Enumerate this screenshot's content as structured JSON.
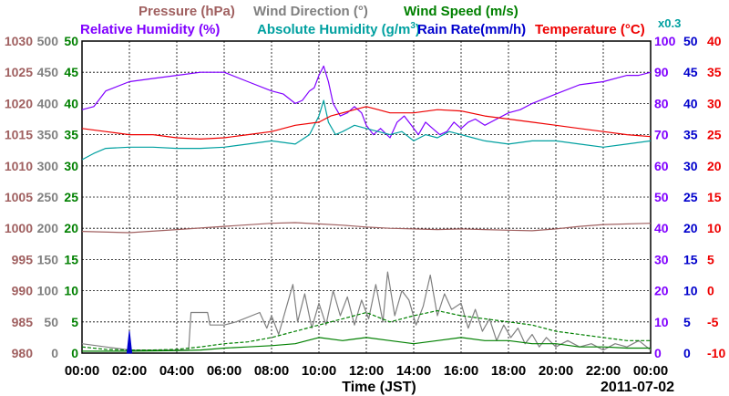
{
  "chart_data": {
    "type": "line",
    "legend_row1": [
      {
        "label": "Pressure (hPa)",
        "color": "#a06060"
      },
      {
        "label": "Wind Direction (°)",
        "color": "#808080"
      },
      {
        "label": "Wind Speed (m/s)",
        "color": "#008000"
      }
    ],
    "legend_row2": [
      {
        "label": "Relative Humidity (%)",
        "color": "#8000ff"
      },
      {
        "label": "Absolute Humidity (g/m",
        "sup": "3",
        "close": ")",
        "color": "#00a0a0"
      },
      {
        "label": "Rain Rate(mm/h)",
        "color": "#0000cc"
      },
      {
        "label": "Temperature (°C)",
        "color": "#ee0000"
      }
    ],
    "rain_scale_note": "x0.3",
    "xlabel": "Time (JST)",
    "date_label": "2011-07-02",
    "x_ticks": [
      "00:00",
      "02:00",
      "04:00",
      "06:00",
      "08:00",
      "10:00",
      "12:00",
      "14:00",
      "16:00",
      "18:00",
      "20:00",
      "22:00",
      "00:00"
    ],
    "axes": {
      "pressure": {
        "ticks": [
          "1030",
          "1025",
          "1020",
          "1015",
          "1010",
          "1005",
          "1000",
          "995",
          "990",
          "985",
          "980"
        ],
        "ylim": [
          980,
          1030
        ],
        "color": "#a06060"
      },
      "wind_direction": {
        "ticks": [
          "500",
          "450",
          "400",
          "350",
          "300",
          "250",
          "200",
          "150",
          "100",
          "50",
          "0"
        ],
        "ylim": [
          0,
          500
        ],
        "color": "#808080"
      },
      "wind_speed": {
        "ticks": [
          "50",
          "45",
          "40",
          "35",
          "30",
          "25",
          "20",
          "15",
          "10",
          "5",
          "0"
        ],
        "ylim": [
          0,
          50
        ],
        "color": "#008000"
      },
      "relative_humidity": {
        "ticks": [
          "100",
          "90",
          "80",
          "70",
          "60",
          "50",
          "40",
          "30",
          "20",
          "10",
          "0"
        ],
        "ylim": [
          0,
          100
        ],
        "color": "#8000ff"
      },
      "rain_rate": {
        "ticks": [
          "50",
          "45",
          "40",
          "35",
          "30",
          "25",
          "20",
          "15",
          "10",
          "5",
          "0"
        ],
        "ylim": [
          0,
          50
        ],
        "color": "#0000cc"
      },
      "temperature": {
        "ticks": [
          "40",
          "35",
          "30",
          "25",
          "20",
          "15",
          "10",
          "5",
          "0",
          "-5",
          "-10"
        ],
        "ylim": [
          -10,
          40
        ],
        "color": "#ee0000"
      }
    },
    "grid": true,
    "series": [
      {
        "name": "Pressure (hPa)",
        "axis": "pressure",
        "color": "#a06060",
        "style": "solid",
        "points": [
          [
            0,
            999.5
          ],
          [
            2,
            999.3
          ],
          [
            4,
            999.8
          ],
          [
            6,
            1000.3
          ],
          [
            8,
            1000.8
          ],
          [
            9,
            1000.9
          ],
          [
            10,
            1000.7
          ],
          [
            11,
            1000.5
          ],
          [
            12,
            1000.2
          ],
          [
            13,
            1000
          ],
          [
            14,
            999.9
          ],
          [
            15,
            999.8
          ],
          [
            16,
            999.9
          ],
          [
            17,
            999.8
          ],
          [
            18,
            999.7
          ],
          [
            19,
            999.6
          ],
          [
            20,
            999.9
          ],
          [
            21,
            1000.3
          ],
          [
            22,
            1000.6
          ],
          [
            24,
            1000.8
          ]
        ]
      },
      {
        "name": "Wind Direction (°)",
        "axis": "wind_direction",
        "color": "#808080",
        "style": "solid",
        "points": [
          [
            0,
            15
          ],
          [
            1,
            10
          ],
          [
            2,
            5
          ],
          [
            3,
            5
          ],
          [
            4,
            5
          ],
          [
            4.5,
            5
          ],
          [
            4.6,
            65
          ],
          [
            5.3,
            65
          ],
          [
            5.4,
            45
          ],
          [
            6,
            45
          ],
          [
            6.5,
            50
          ],
          [
            7.5,
            65
          ],
          [
            7.8,
            40
          ],
          [
            8,
            60
          ],
          [
            8.3,
            30
          ],
          [
            8.6,
            70
          ],
          [
            8.9,
            110
          ],
          [
            9.1,
            50
          ],
          [
            9.4,
            95
          ],
          [
            9.7,
            40
          ],
          [
            10,
            80
          ],
          [
            10.3,
            45
          ],
          [
            10.6,
            100
          ],
          [
            10.9,
            60
          ],
          [
            11.2,
            90
          ],
          [
            11.5,
            45
          ],
          [
            11.8,
            85
          ],
          [
            12.1,
            55
          ],
          [
            12.4,
            110
          ],
          [
            12.7,
            50
          ],
          [
            12.9,
            130
          ],
          [
            13.2,
            60
          ],
          [
            13.5,
            100
          ],
          [
            13.8,
            85
          ],
          [
            14.1,
            45
          ],
          [
            14.4,
            75
          ],
          [
            14.7,
            125
          ],
          [
            15,
            60
          ],
          [
            15.3,
            95
          ],
          [
            15.6,
            70
          ],
          [
            16,
            80
          ],
          [
            16.3,
            40
          ],
          [
            16.6,
            70
          ],
          [
            16.9,
            35
          ],
          [
            17.2,
            55
          ],
          [
            17.5,
            20
          ],
          [
            17.8,
            45
          ],
          [
            18.1,
            25
          ],
          [
            18.4,
            40
          ],
          [
            18.7,
            15
          ],
          [
            19,
            30
          ],
          [
            19.3,
            10
          ],
          [
            19.6,
            25
          ],
          [
            20,
            10
          ],
          [
            20.5,
            20
          ],
          [
            21,
            10
          ],
          [
            21.5,
            15
          ],
          [
            22,
            5
          ],
          [
            22.5,
            15
          ],
          [
            23,
            10
          ],
          [
            23.5,
            20
          ],
          [
            24,
            5
          ]
        ]
      },
      {
        "name": "Wind Speed (m/s)",
        "axis": "wind_speed",
        "color": "#008000",
        "style": "dashed",
        "points": [
          [
            0,
            1
          ],
          [
            1,
            0.6
          ],
          [
            2,
            0.5
          ],
          [
            3,
            0.5
          ],
          [
            4,
            0.6
          ],
          [
            5,
            1
          ],
          [
            6,
            1.5
          ],
          [
            7,
            1.8
          ],
          [
            8,
            2.5
          ],
          [
            9,
            3.5
          ],
          [
            10,
            4.5
          ],
          [
            11,
            5.5
          ],
          [
            12,
            6.5
          ],
          [
            13,
            5
          ],
          [
            14,
            6
          ],
          [
            15,
            6.8
          ],
          [
            16,
            6
          ],
          [
            17,
            5.5
          ],
          [
            18,
            5
          ],
          [
            19,
            4.5
          ],
          [
            20,
            3.5
          ],
          [
            21,
            3
          ],
          [
            22,
            2.5
          ],
          [
            23,
            2
          ],
          [
            24,
            2
          ]
        ]
      },
      {
        "name": "Wind Speed (m/s)",
        "axis": "wind_speed",
        "color": "#008000",
        "style": "solid",
        "points": [
          [
            0,
            0.3
          ],
          [
            2,
            0.3
          ],
          [
            4,
            0.4
          ],
          [
            5,
            0.5
          ],
          [
            6,
            0.8
          ],
          [
            7,
            1
          ],
          [
            8,
            1.2
          ],
          [
            9,
            1.5
          ],
          [
            10,
            2.5
          ],
          [
            11,
            2
          ],
          [
            12,
            2.5
          ],
          [
            13,
            2
          ],
          [
            14,
            1.5
          ],
          [
            15,
            2
          ],
          [
            16,
            2.5
          ],
          [
            17,
            2
          ],
          [
            18,
            2
          ],
          [
            19,
            1.5
          ],
          [
            20,
            1.5
          ],
          [
            21,
            1
          ],
          [
            22,
            1
          ],
          [
            23,
            0.8
          ],
          [
            24,
            0.8
          ]
        ]
      },
      {
        "name": "Rain Rate(mm/h)",
        "axis": "rain_rate",
        "color": "#0000cc",
        "style": "bar",
        "points": [
          [
            1.9,
            0
          ],
          [
            2.0,
            3.5
          ],
          [
            2.1,
            0
          ]
        ]
      },
      {
        "name": "Relative Humidity (%)",
        "axis": "relative_humidity",
        "color": "#8000ff",
        "style": "solid",
        "points": [
          [
            0,
            78
          ],
          [
            0.5,
            79
          ],
          [
            1,
            84
          ],
          [
            2,
            87
          ],
          [
            3,
            88
          ],
          [
            4,
            89
          ],
          [
            5,
            90
          ],
          [
            6,
            90
          ],
          [
            7,
            87
          ],
          [
            8,
            84
          ],
          [
            8.5,
            83
          ],
          [
            9,
            80
          ],
          [
            9.3,
            81
          ],
          [
            9.6,
            84
          ],
          [
            9.8,
            85
          ],
          [
            10,
            89
          ],
          [
            10.2,
            92
          ],
          [
            10.4,
            87
          ],
          [
            10.6,
            80
          ],
          [
            10.9,
            76
          ],
          [
            11.2,
            77
          ],
          [
            11.5,
            79
          ],
          [
            11.8,
            77
          ],
          [
            12,
            73
          ],
          [
            12.3,
            70
          ],
          [
            12.6,
            72
          ],
          [
            13,
            69
          ],
          [
            13.3,
            74
          ],
          [
            13.6,
            76
          ],
          [
            13.9,
            73
          ],
          [
            14.2,
            70
          ],
          [
            14.5,
            74
          ],
          [
            14.8,
            72
          ],
          [
            15.1,
            70
          ],
          [
            15.4,
            71
          ],
          [
            15.7,
            74
          ],
          [
            16,
            72
          ],
          [
            16.3,
            74
          ],
          [
            16.6,
            75
          ],
          [
            17,
            73
          ],
          [
            17.5,
            75
          ],
          [
            18,
            77
          ],
          [
            18.5,
            78
          ],
          [
            19,
            80
          ],
          [
            20,
            83
          ],
          [
            21,
            86
          ],
          [
            22,
            87
          ],
          [
            23,
            89
          ],
          [
            23.5,
            89
          ],
          [
            24,
            90
          ]
        ]
      },
      {
        "name": "Absolute Humidity (g/m3)",
        "axis": "wind_speed",
        "color": "#00a0a0",
        "style": "solid",
        "points": [
          [
            0,
            31
          ],
          [
            0.5,
            32
          ],
          [
            1,
            32.8
          ],
          [
            2,
            33
          ],
          [
            3,
            33
          ],
          [
            4,
            32.8
          ],
          [
            5,
            32.8
          ],
          [
            6,
            33
          ],
          [
            7,
            33.5
          ],
          [
            8,
            34
          ],
          [
            9,
            33.5
          ],
          [
            9.6,
            35
          ],
          [
            10,
            38
          ],
          [
            10.2,
            40.5
          ],
          [
            10.4,
            37
          ],
          [
            10.7,
            35
          ],
          [
            11,
            35.5
          ],
          [
            11.5,
            36.5
          ],
          [
            12,
            36
          ],
          [
            12.5,
            35.5
          ],
          [
            13,
            35
          ],
          [
            13.5,
            35.5
          ],
          [
            14,
            34
          ],
          [
            14.5,
            35
          ],
          [
            15,
            34.5
          ],
          [
            15.5,
            35.5
          ],
          [
            16,
            35
          ],
          [
            16.5,
            34.5
          ],
          [
            17,
            34
          ],
          [
            18,
            33.5
          ],
          [
            19,
            34
          ],
          [
            20,
            34
          ],
          [
            21,
            33.5
          ],
          [
            22,
            33
          ],
          [
            23,
            33.5
          ],
          [
            24,
            34
          ]
        ]
      },
      {
        "name": "Temperature (°C)",
        "axis": "temperature",
        "color": "#ee0000",
        "style": "solid",
        "points": [
          [
            0,
            26
          ],
          [
            1,
            25.5
          ],
          [
            2,
            25
          ],
          [
            3,
            25
          ],
          [
            4,
            24.5
          ],
          [
            5,
            24.3
          ],
          [
            6,
            24.5
          ],
          [
            7,
            25
          ],
          [
            8,
            25.5
          ],
          [
            9,
            26.5
          ],
          [
            10,
            27
          ],
          [
            10.5,
            28
          ],
          [
            11,
            28.5
          ],
          [
            11.5,
            29
          ],
          [
            12,
            29.5
          ],
          [
            12.5,
            29
          ],
          [
            13,
            28.5
          ],
          [
            14,
            28.5
          ],
          [
            15,
            29
          ],
          [
            16,
            28.8
          ],
          [
            17,
            28
          ],
          [
            18,
            27.5
          ],
          [
            19,
            27
          ],
          [
            20,
            26.5
          ],
          [
            21,
            26
          ],
          [
            22,
            25.5
          ],
          [
            23,
            25
          ],
          [
            24,
            24.7
          ]
        ]
      }
    ]
  }
}
